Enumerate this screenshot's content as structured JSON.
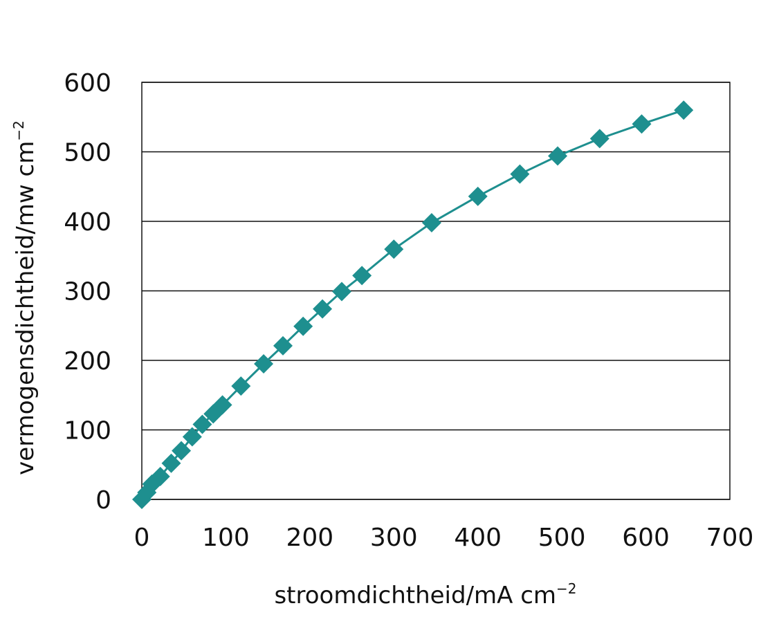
{
  "chart_data": {
    "type": "line",
    "xlabel": "stroomdichtheid/mA cm",
    "xlabel_sup": "−2",
    "ylabel": "vermogensdichtheid/mw cm",
    "ylabel_sup": "−2",
    "xlim": [
      0,
      700
    ],
    "ylim": [
      0,
      600
    ],
    "xticks": [
      0,
      100,
      200,
      300,
      400,
      500,
      600,
      700
    ],
    "yticks": [
      0,
      100,
      200,
      300,
      400,
      500,
      600
    ],
    "grid": "horizontal",
    "marker": "diamond",
    "color": "#1e8f8f",
    "series": [
      {
        "x": [
          0,
          6,
          12,
          22,
          35,
          47,
          60,
          72,
          85,
          96,
          118,
          145,
          168,
          192,
          215,
          238,
          262,
          300,
          345,
          400,
          450,
          495,
          545,
          595,
          645
        ],
        "y": [
          0,
          10,
          22,
          33,
          52,
          70,
          90,
          108,
          123,
          136,
          163,
          195,
          221,
          249,
          274,
          299,
          322,
          360,
          398,
          436,
          468,
          494,
          519,
          540,
          560
        ]
      }
    ]
  }
}
